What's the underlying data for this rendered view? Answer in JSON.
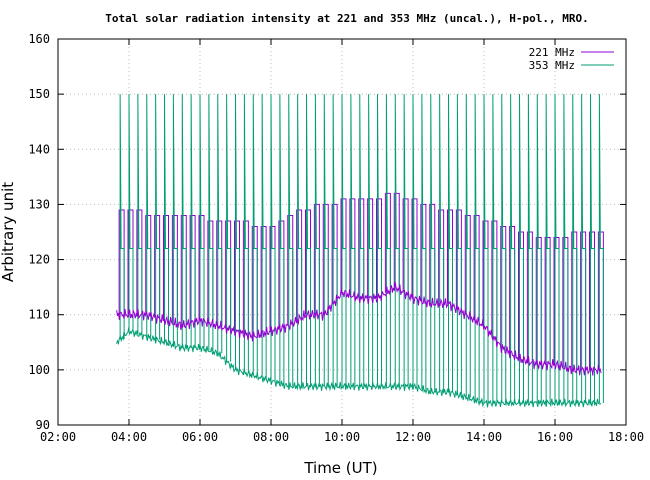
{
  "chart_data": {
    "type": "line",
    "title": "Total solar radiation intensity at 221 and 353 MHz (uncal.), H-pol., MRO.",
    "xlabel": "Time (UT)",
    "ylabel": "Arbitrary unit",
    "xlim": [
      2,
      18
    ],
    "ylim": [
      90,
      160
    ],
    "x_ticks": [
      "02:00",
      "04:00",
      "06:00",
      "08:00",
      "10:00",
      "12:00",
      "14:00",
      "16:00",
      "18:00"
    ],
    "x_tick_values": [
      2,
      4,
      6,
      8,
      10,
      12,
      14,
      16,
      18
    ],
    "y_ticks": [
      90,
      100,
      110,
      120,
      130,
      140,
      150,
      160
    ],
    "grid": true,
    "legend_position": "top-right",
    "series": [
      {
        "name": "221 MHz",
        "color": "#9400d3",
        "x": [
          3.65,
          4.0,
          4.5,
          5.0,
          5.5,
          6.0,
          6.5,
          7.0,
          7.5,
          8.0,
          8.5,
          9.0,
          9.5,
          10.0,
          10.5,
          11.0,
          11.5,
          12.0,
          12.5,
          13.0,
          13.5,
          14.0,
          14.5,
          15.0,
          15.5,
          16.0,
          16.5,
          17.0,
          17.3
        ],
        "values": [
          110,
          110,
          110,
          109,
          108,
          109,
          108,
          107,
          106,
          107,
          108,
          110,
          110,
          114,
          113,
          113,
          115,
          113,
          112,
          112,
          110,
          108,
          104,
          102,
          101,
          101,
          100,
          100,
          100
        ]
      },
      {
        "name": "353 MHz",
        "color": "#009e73",
        "x": [
          3.65,
          4.0,
          4.5,
          5.0,
          5.5,
          6.0,
          6.5,
          7.0,
          7.5,
          8.0,
          8.5,
          9.0,
          9.5,
          10.0,
          10.5,
          11.0,
          11.5,
          12.0,
          12.5,
          13.0,
          13.5,
          14.0,
          14.5,
          15.0,
          15.5,
          16.0,
          16.5,
          17.0,
          17.3
        ],
        "values": [
          105,
          107,
          106,
          105,
          104,
          104,
          103,
          100,
          99,
          98,
          97,
          97,
          97,
          97,
          97,
          97,
          97,
          97,
          96,
          96,
          95,
          94,
          94,
          94,
          94,
          94,
          94,
          94,
          94
        ]
      }
    ],
    "calibration_spikes": {
      "x": [
        3.75,
        4.0,
        4.25,
        4.5,
        4.75,
        5.0,
        5.25,
        5.5,
        5.75,
        6.0,
        6.25,
        6.5,
        6.75,
        7.0,
        7.25,
        7.5,
        7.75,
        8.0,
        8.25,
        8.5,
        8.75,
        9.0,
        9.25,
        9.5,
        9.75,
        10.0,
        10.25,
        10.5,
        10.75,
        11.0,
        11.25,
        11.5,
        11.75,
        12.0,
        12.25,
        12.5,
        12.75,
        13.0,
        13.25,
        13.5,
        13.75,
        14.0,
        14.25,
        14.5,
        14.75,
        15.0,
        15.25,
        15.5,
        15.75,
        16.0,
        16.25,
        16.5,
        16.75,
        17.0,
        17.25
      ],
      "peak_353": 150,
      "plateau_221": [
        129,
        129,
        129,
        128,
        128,
        128,
        128,
        128,
        128,
        128,
        127,
        127,
        127,
        127,
        127,
        126,
        126,
        126,
        127,
        128,
        129,
        129,
        130,
        130,
        130,
        131,
        131,
        131,
        131,
        131,
        132,
        132,
        131,
        131,
        130,
        130,
        129,
        129,
        129,
        128,
        128,
        127,
        127,
        126,
        126,
        125,
        125,
        124,
        124,
        124,
        124,
        125,
        125,
        125,
        125
      ],
      "plateau_353": 122
    }
  }
}
